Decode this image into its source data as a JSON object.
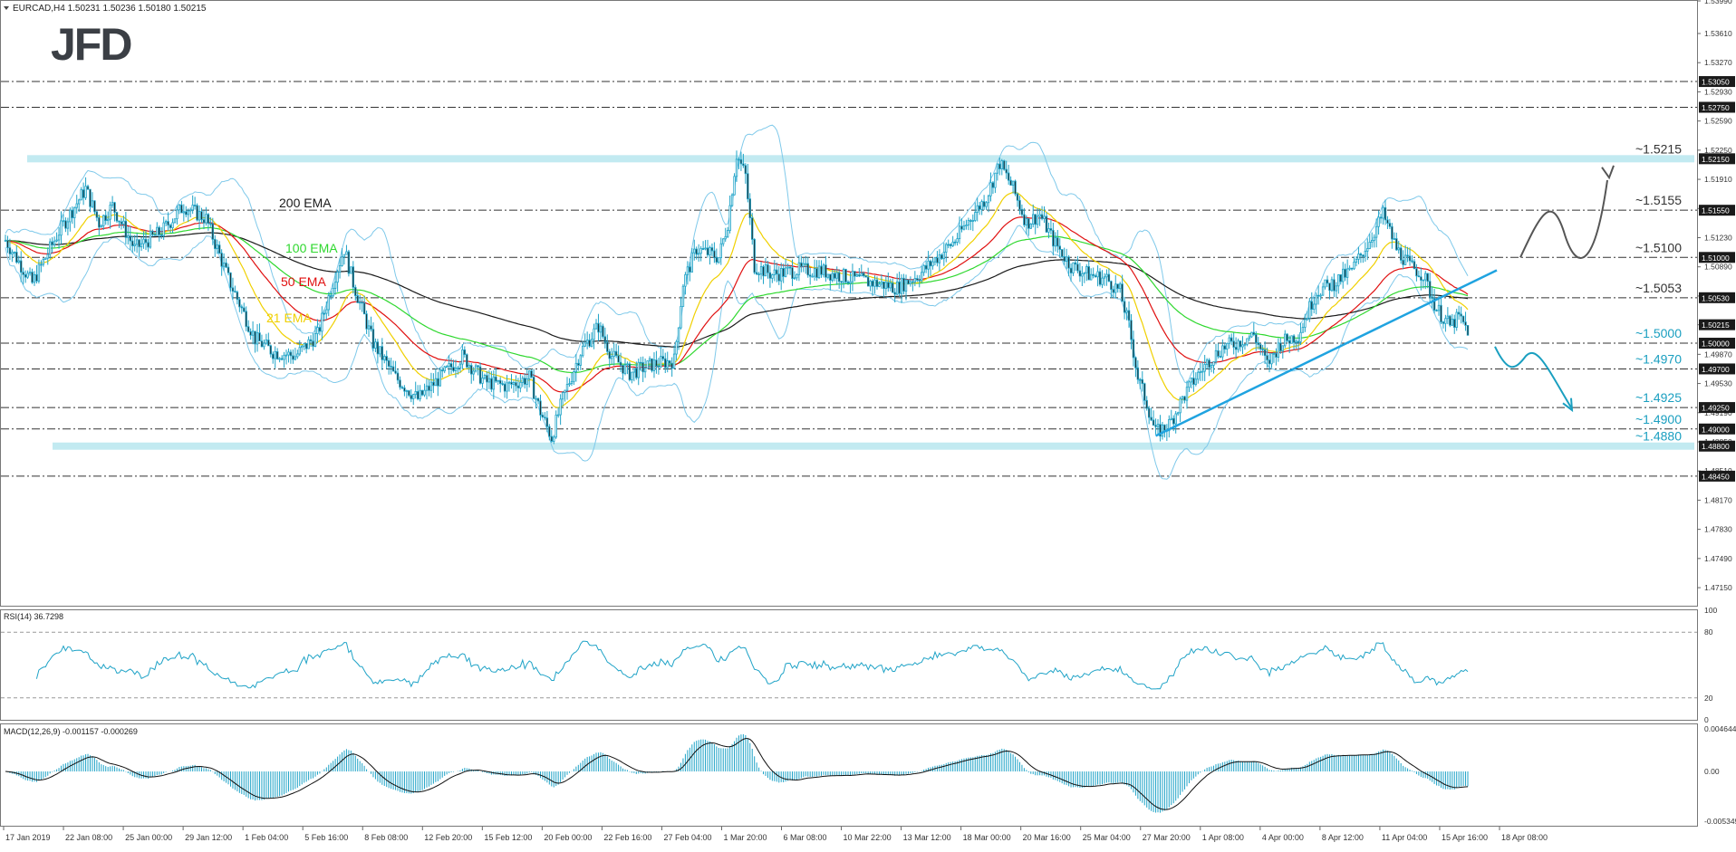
{
  "window": {
    "symbol_header": "EURCAD,H4  1.50231 1.50236 1.50180 1.50215",
    "logo_text": "JFD"
  },
  "colors": {
    "candle": "#1fa3c7",
    "ema200": "#1a1a1a",
    "ema100": "#2fd82f",
    "ema50": "#e01010",
    "ema21": "#f0d000",
    "bollinger": "#7fc9ea",
    "zone": "#8fd8e6",
    "level_label": "#1a9fc0",
    "arrow_up": "#555555",
    "arrow_down": "#1a9fc0",
    "trendline": "#1fa3e0"
  },
  "chart_data": [
    {
      "type": "candlestick",
      "symbol": "EURCAD",
      "timeframe": "H4",
      "header_values": {
        "open": 1.50231,
        "high": 1.50236,
        "low": 1.5018,
        "close": 1.50215
      },
      "ylim": [
        1.4695,
        1.5399
      ],
      "y_ticks": [
        1.5399,
        1.5361,
        1.5327,
        1.5293,
        1.5259,
        1.5225,
        1.5191,
        1.5157,
        1.5123,
        1.5089,
        1.5055,
        1.50215,
        1.4987,
        1.4953,
        1.4919,
        1.4885,
        1.4851,
        1.4817,
        1.4783,
        1.4749,
        1.4715
      ],
      "y_ticks_labels": [
        "1.53990",
        "1.53610",
        "1.53270",
        "1.52930",
        "1.52590",
        "1.52250",
        "1.51910",
        "1.51570",
        "1.51230",
        "1.50890",
        "1.50550",
        "1.50215",
        "1.49870",
        "1.49530",
        "1.49190",
        "1.48850",
        "1.48510",
        "1.48170",
        "1.47830",
        "1.47490",
        "1.47150"
      ],
      "x_tick_labels": [
        "17 Jan 2019",
        "22 Jan 08:00",
        "25 Jan 00:00",
        "29 Jan 12:00",
        "1 Feb 04:00",
        "5 Feb 16:00",
        "8 Feb 08:00",
        "12 Feb 20:00",
        "15 Feb 12:00",
        "20 Feb 00:00",
        "22 Feb 16:00",
        "27 Feb 04:00",
        "1 Mar 20:00",
        "6 Mar 08:00",
        "10 Mar 22:00",
        "13 Mar 12:00",
        "18 Mar 00:00",
        "20 Mar 16:00",
        "25 Mar 04:00",
        "27 Mar 20:00",
        "1 Apr 08:00",
        "4 Apr 00:00",
        "8 Apr 12:00",
        "11 Apr 04:00",
        "15 Apr 16:00",
        "18 Apr 08:00"
      ],
      "price_boxes": [
        {
          "value": 1.5305,
          "label": "1.53050"
        },
        {
          "value": 1.5275,
          "label": "1.52750"
        },
        {
          "value": 1.5215,
          "label": "1.52150"
        },
        {
          "value": 1.5155,
          "label": "1.51550"
        },
        {
          "value": 1.51,
          "label": "1.51000"
        },
        {
          "value": 1.5053,
          "label": "1.50530"
        },
        {
          "value": 1.50215,
          "label": "1.50215"
        },
        {
          "value": 1.5,
          "label": "1.50000"
        },
        {
          "value": 1.497,
          "label": "1.49700"
        },
        {
          "value": 1.4925,
          "label": "1.49250"
        },
        {
          "value": 1.49,
          "label": "1.49000"
        },
        {
          "value": 1.488,
          "label": "1.48800"
        },
        {
          "value": 1.4845,
          "label": "1.48450"
        }
      ],
      "horizontal_levels": [
        1.5305,
        1.5275,
        1.5155,
        1.51,
        1.5053,
        1.5,
        1.497,
        1.4925,
        1.49,
        1.4845
      ],
      "zones": [
        1.5215,
        1.488
      ],
      "level_annotations": [
        {
          "value": 1.5215,
          "label": "~1.5215",
          "style": "dark"
        },
        {
          "value": 1.5155,
          "label": "~1.5155",
          "style": "dark"
        },
        {
          "value": 1.51,
          "label": "~1.5100",
          "style": "dark"
        },
        {
          "value": 1.5053,
          "label": "~1.5053",
          "style": "dark"
        },
        {
          "value": 1.5,
          "label": "~1.5000",
          "style": "blue"
        },
        {
          "value": 1.497,
          "label": "~1.4970",
          "style": "blue"
        },
        {
          "value": 1.4925,
          "label": "~1.4925",
          "style": "blue"
        },
        {
          "value": 1.49,
          "label": "~1.4900",
          "style": "blue"
        },
        {
          "value": 1.488,
          "label": "~1.4880",
          "style": "blue"
        }
      ],
      "ema_labels": [
        {
          "name": "200 EMA",
          "color_key": "ema200"
        },
        {
          "name": "100 EMA",
          "color_key": "ema100"
        },
        {
          "name": "50 EMA",
          "color_key": "ema50"
        },
        {
          "name": "21 EMA",
          "color_key": "ema21"
        }
      ],
      "close_path": [
        [
          0,
          1.512
        ],
        [
          12,
          1.507
        ],
        [
          24,
          1.513
        ],
        [
          36,
          1.518
        ],
        [
          42,
          1.514
        ],
        [
          48,
          1.516
        ],
        [
          58,
          1.511
        ],
        [
          70,
          1.513
        ],
        [
          80,
          1.516
        ],
        [
          90,
          1.5145
        ],
        [
          100,
          1.5075
        ],
        [
          112,
          1.5005
        ],
        [
          120,
          1.499
        ],
        [
          130,
          1.4985
        ],
        [
          140,
          1.501
        ],
        [
          148,
          1.508
        ],
        [
          152,
          1.511
        ],
        [
          156,
          1.507
        ],
        [
          165,
          1.5
        ],
        [
          175,
          1.496
        ],
        [
          185,
          1.4935
        ],
        [
          195,
          1.496
        ],
        [
          205,
          1.4985
        ],
        [
          215,
          1.4955
        ],
        [
          225,
          1.495
        ],
        [
          235,
          1.496
        ],
        [
          240,
          1.492
        ],
        [
          245,
          1.489
        ],
        [
          250,
          1.4935
        ],
        [
          258,
          1.499
        ],
        [
          266,
          1.502
        ],
        [
          272,
          1.4985
        ],
        [
          280,
          1.4965
        ],
        [
          290,
          1.4975
        ],
        [
          300,
          1.498
        ],
        [
          304,
          1.507
        ],
        [
          310,
          1.511
        ],
        [
          320,
          1.51
        ],
        [
          324,
          1.514
        ],
        [
          328,
          1.522
        ],
        [
          332,
          1.5195
        ],
        [
          336,
          1.509
        ],
        [
          344,
          1.508
        ],
        [
          355,
          1.5085
        ],
        [
          365,
          1.5085
        ],
        [
          380,
          1.5075
        ],
        [
          390,
          1.507
        ],
        [
          400,
          1.5065
        ],
        [
          410,
          1.508
        ],
        [
          418,
          1.51
        ],
        [
          426,
          1.512
        ],
        [
          434,
          1.515
        ],
        [
          440,
          1.517
        ],
        [
          446,
          1.521
        ],
        [
          452,
          1.518
        ],
        [
          458,
          1.514
        ],
        [
          464,
          1.515
        ],
        [
          470,
          1.512
        ],
        [
          478,
          1.509
        ],
        [
          486,
          1.508
        ],
        [
          494,
          1.5075
        ],
        [
          500,
          1.506
        ],
        [
          504,
          1.502
        ],
        [
          508,
          1.496
        ],
        [
          512,
          1.493
        ],
        [
          516,
          1.4895
        ],
        [
          522,
          1.4905
        ],
        [
          528,
          1.4935
        ],
        [
          534,
          1.496
        ],
        [
          540,
          1.498
        ],
        [
          546,
          1.4995
        ],
        [
          552,
          1.5
        ],
        [
          560,
          1.501
        ],
        [
          566,
          1.4975
        ],
        [
          572,
          1.5
        ],
        [
          580,
          1.501
        ],
        [
          588,
          1.506
        ],
        [
          596,
          1.507
        ],
        [
          604,
          1.5085
        ],
        [
          612,
          1.512
        ],
        [
          618,
          1.515
        ],
        [
          624,
          1.511
        ],
        [
          630,
          1.509
        ],
        [
          636,
          1.508
        ],
        [
          642,
          1.504
        ],
        [
          648,
          1.502
        ],
        [
          652,
          1.503
        ],
        [
          656,
          1.5015
        ]
      ],
      "y_levels_only_note": null
    },
    {
      "type": "line",
      "indicator": "RSI",
      "header": "RSI(14) 36.7298",
      "ylim": [
        0,
        100
      ],
      "y_ticks": [
        100,
        80,
        20,
        0
      ],
      "y_tick_labels": [
        "100",
        "80",
        "20",
        "0"
      ],
      "levels": [
        80,
        20
      ]
    },
    {
      "type": "line",
      "indicator": "MACD",
      "header": "MACD(12,26,9) -0.001157 -0.000269",
      "ylim": [
        -0.005349,
        0.004644
      ],
      "y_ticks": [
        0.004644,
        0.0,
        -0.005349
      ],
      "y_tick_labels": [
        "0.004644",
        "0.00",
        "-0.005349"
      ]
    }
  ]
}
